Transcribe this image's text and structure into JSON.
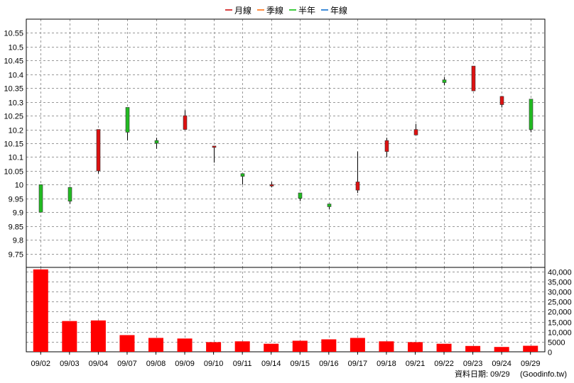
{
  "legend": {
    "items": [
      {
        "label": "月線",
        "color": "#cc0000"
      },
      {
        "label": "季線",
        "color": "#ff6600"
      },
      {
        "label": "半年",
        "color": "#00bb00"
      },
      {
        "label": "年線",
        "color": "#0066cc"
      }
    ]
  },
  "footer": {
    "date_label": "資料日期: 09/29",
    "source": "(Goodinfo.tw)"
  },
  "colors": {
    "up": "#dd1111",
    "down": "#22bb22",
    "volume": "#ff0000",
    "grid": "#999999"
  },
  "chart_data": [
    {
      "type": "candlestick",
      "grid": true,
      "ylim": [
        9.7,
        10.6
      ],
      "yticks": [
        9.75,
        9.8,
        9.85,
        9.9,
        9.95,
        10,
        10.05,
        10.1,
        10.15,
        10.2,
        10.25,
        10.3,
        10.35,
        10.4,
        10.45,
        10.5,
        10.55
      ],
      "ytick_labels": [
        "9.75",
        "9.8",
        "9.85",
        "9.9",
        "9.95",
        "10",
        "10.05",
        "10.1",
        "10.15",
        "10.2",
        "10.25",
        "10.3",
        "10.35",
        "10.4",
        "10.45",
        "10.5",
        "10.55"
      ],
      "categories": [
        "09/02",
        "09/03",
        "09/04",
        "09/07",
        "09/08",
        "09/09",
        "09/10",
        "09/11",
        "09/14",
        "09/15",
        "09/16",
        "09/17",
        "09/18",
        "09/21",
        "09/22",
        "09/23",
        "09/24",
        "09/29"
      ],
      "candles": [
        {
          "open": 10.0,
          "close": 9.9,
          "high": 10.0,
          "low": 9.9
        },
        {
          "open": 9.99,
          "close": 9.94,
          "high": 9.99,
          "low": 9.93
        },
        {
          "open": 10.05,
          "close": 10.2,
          "high": 10.2,
          "low": 10.04
        },
        {
          "open": 10.28,
          "close": 10.19,
          "high": 10.28,
          "low": 10.16
        },
        {
          "open": 10.16,
          "close": 10.15,
          "high": 10.17,
          "low": 10.13
        },
        {
          "open": 10.2,
          "close": 10.25,
          "high": 10.27,
          "low": 10.2
        },
        {
          "open": 10.14,
          "close": 10.14,
          "high": 10.14,
          "low": 10.08
        },
        {
          "open": 10.04,
          "close": 10.03,
          "high": 10.04,
          "low": 10.0
        },
        {
          "open": 10.0,
          "close": 10.0,
          "high": 10.01,
          "low": 9.99
        },
        {
          "open": 9.97,
          "close": 9.95,
          "high": 9.97,
          "low": 9.94
        },
        {
          "open": 9.93,
          "close": 9.92,
          "high": 9.93,
          "low": 9.91
        },
        {
          "open": 9.98,
          "close": 10.01,
          "high": 10.12,
          "low": 9.97
        },
        {
          "open": 10.12,
          "close": 10.16,
          "high": 10.17,
          "low": 10.1
        },
        {
          "open": 10.18,
          "close": 10.2,
          "high": 10.22,
          "low": 10.18
        },
        {
          "open": 10.38,
          "close": 10.37,
          "high": 10.39,
          "low": 10.36
        },
        {
          "open": 10.34,
          "close": 10.43,
          "high": 10.43,
          "low": 10.34
        },
        {
          "open": 10.29,
          "close": 10.32,
          "high": 10.32,
          "low": 10.28
        },
        {
          "open": 10.31,
          "close": 10.2,
          "high": 10.31,
          "low": 10.19
        }
      ]
    },
    {
      "type": "bar",
      "grid": true,
      "ylim": [
        0,
        42000
      ],
      "yticks": [
        0,
        5000,
        10000,
        15000,
        20000,
        25000,
        30000,
        35000,
        40000
      ],
      "ytick_labels": [
        "0",
        "5000",
        "10,000",
        "15,000",
        "20,000",
        "25,000",
        "30,000",
        "35,000",
        "40,000"
      ],
      "categories": [
        "09/02",
        "09/03",
        "09/04",
        "09/07",
        "09/08",
        "09/09",
        "09/10",
        "09/11",
        "09/14",
        "09/15",
        "09/16",
        "09/17",
        "09/18",
        "09/21",
        "09/22",
        "09/23",
        "09/24",
        "09/29"
      ],
      "values": [
        41000,
        15300,
        15600,
        8300,
        6900,
        6600,
        4800,
        5200,
        4000,
        5500,
        6200,
        6900,
        5200,
        4800,
        4000,
        2900,
        2400,
        3000
      ]
    }
  ]
}
